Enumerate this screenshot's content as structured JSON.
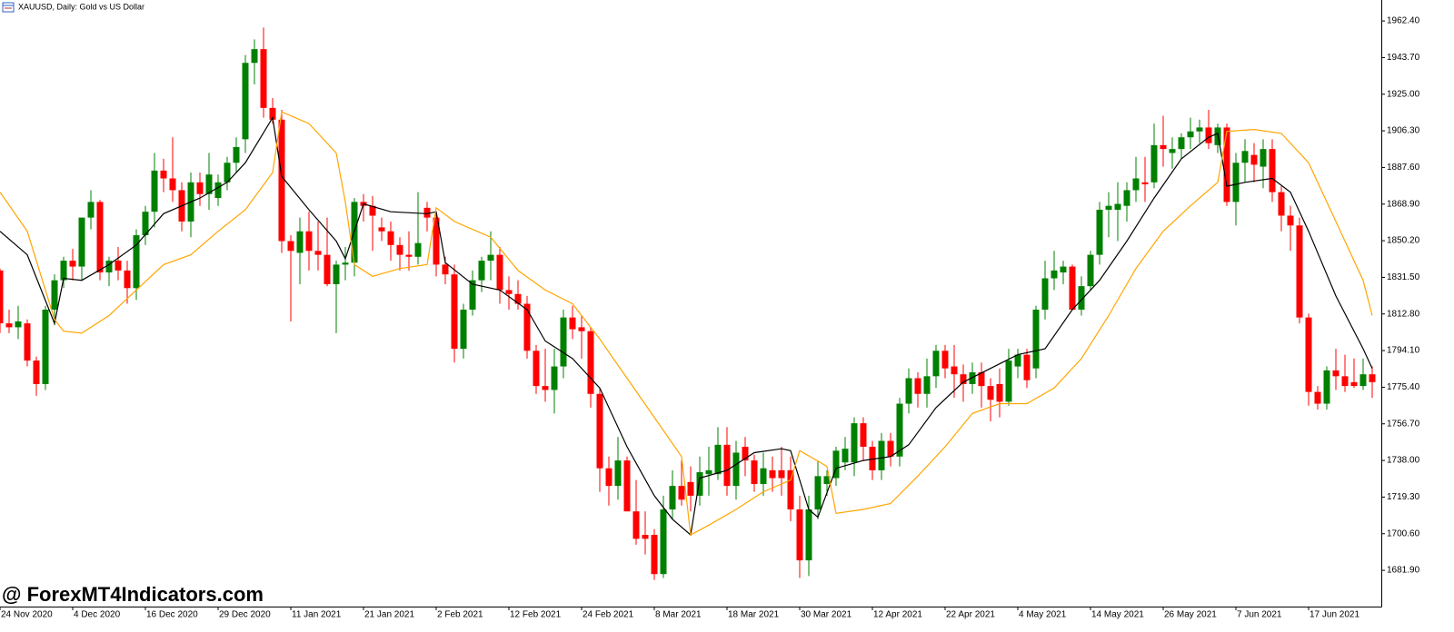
{
  "chart_data": {
    "type": "candlestick",
    "title": "XAUUSD, Daily:  Gold vs US Dollar",
    "watermark": "@ ForexMT4Indicators.com",
    "up_color": "#008000",
    "down_color": "#ff0000",
    "grid": false,
    "xlim": [
      0,
      152
    ],
    "ylim": [
      1663.4,
      1973.1
    ],
    "yticks": [
      {
        "value": 1962.4,
        "label": "1962.40"
      },
      {
        "value": 1943.7,
        "label": "1943.70"
      },
      {
        "value": 1925,
        "label": "1925.00"
      },
      {
        "value": 1906.3,
        "label": "1906.30"
      },
      {
        "value": 1887.6,
        "label": "1887.60"
      },
      {
        "value": 1868.9,
        "label": "1868.90"
      },
      {
        "value": 1850.2,
        "label": "1850.20"
      },
      {
        "value": 1831.5,
        "label": "1831.50"
      },
      {
        "value": 1812.8,
        "label": "1812.80"
      },
      {
        "value": 1794.1,
        "label": "1794.10"
      },
      {
        "value": 1775.4,
        "label": "1775.40"
      },
      {
        "value": 1756.7,
        "label": "1756.70"
      },
      {
        "value": 1738,
        "label": "1738.00"
      },
      {
        "value": 1719.3,
        "label": "1719.30"
      },
      {
        "value": 1700.6,
        "label": "1700.60"
      },
      {
        "value": 1681.9,
        "label": "1681.90"
      }
    ],
    "xticks": [
      {
        "value": 0,
        "label": "24 Nov 2020"
      },
      {
        "value": 8,
        "label": "4 Dec 2020"
      },
      {
        "value": 16,
        "label": "16 Dec 2020"
      },
      {
        "value": 24,
        "label": "29 Dec 2020"
      },
      {
        "value": 32,
        "label": "11 Jan 2021"
      },
      {
        "value": 40,
        "label": "21 Jan 2021"
      },
      {
        "value": 48,
        "label": "2 Feb 2021"
      },
      {
        "value": 56,
        "label": "12 Feb 2021"
      },
      {
        "value": 64,
        "label": "24 Feb 2021"
      },
      {
        "value": 72,
        "label": "8 Mar 2021"
      },
      {
        "value": 80,
        "label": "18 Mar 2021"
      },
      {
        "value": 88,
        "label": "30 Mar 2021"
      },
      {
        "value": 96,
        "label": "12 Apr 2021"
      },
      {
        "value": 104,
        "label": "22 Apr 2021"
      },
      {
        "value": 112,
        "label": "4 May 2021"
      },
      {
        "value": 120,
        "label": "14 May 2021"
      },
      {
        "value": 128,
        "label": "26 May 2021"
      },
      {
        "value": 136,
        "label": "7 Jun 2021"
      },
      {
        "value": 144,
        "label": "17 Jun 2021"
      }
    ],
    "open": [
      1835,
      1808,
      1806,
      1808,
      1789,
      1777,
      1815,
      1830,
      1840,
      1837,
      1862,
      1870,
      1834,
      1840,
      1835,
      1826,
      1853,
      1865,
      1886,
      1882,
      1876,
      1860,
      1880,
      1874,
      1872,
      1880,
      1890,
      1902,
      1941,
      1948,
      1918,
      1912,
      1850,
      1844,
      1855,
      1845,
      1843,
      1828,
      1838,
      1839,
      1870,
      1868,
      1857,
      1855,
      1848,
      1843,
      1842,
      1867,
      1862,
      1838,
      1833,
      1795,
      1815,
      1830,
      1840,
      1843,
      1825,
      1823,
      1818,
      1794,
      1776,
      1774,
      1786,
      1811,
      1806,
      1804,
      1772,
      1734,
      1725,
      1738,
      1712,
      1700,
      1700,
      1680,
      1713,
      1725,
      1727,
      1720,
      1731,
      1731,
      1746,
      1725,
      1745,
      1738,
      1726,
      1733,
      1733,
      1733,
      1713,
      1687,
      1713,
      1726,
      1729,
      1737,
      1737,
      1757,
      1745,
      1733,
      1748,
      1740,
      1767,
      1780,
      1772,
      1781,
      1794,
      1786,
      1782,
      1777,
      1783,
      1776,
      1777,
      1768,
      1786,
      1792,
      1785,
      1815,
      1831,
      1834,
      1837,
      1815,
      1827,
      1843,
      1866,
      1866,
      1868,
      1876,
      1880,
      1880,
      1899,
      1895,
      1897,
      1903,
      1906,
      1908,
      1899,
      1908,
      1870,
      1890,
      1894,
      1888,
      1897,
      1875,
      1863,
      1858,
      1811,
      1773,
      1767,
      1784,
      1781,
      1778,
      1776,
      1782
    ],
    "high": [
      1836,
      1815,
      1817,
      1810,
      1791,
      1817,
      1833,
      1842,
      1846,
      1862,
      1876,
      1871,
      1842,
      1847,
      1840,
      1856,
      1868,
      1895,
      1892,
      1903,
      1880,
      1885,
      1885,
      1895,
      1884,
      1893,
      1903,
      1945,
      1953,
      1959,
      1923,
      1917,
      1853,
      1862,
      1865,
      1860,
      1862,
      1840,
      1847,
      1872,
      1874,
      1873,
      1862,
      1860,
      1852,
      1855,
      1875,
      1870,
      1865,
      1842,
      1838,
      1818,
      1835,
      1842,
      1855,
      1847,
      1832,
      1830,
      1822,
      1797,
      1795,
      1795,
      1815,
      1817,
      1812,
      1806,
      1775,
      1740,
      1750,
      1740,
      1728,
      1712,
      1703,
      1720,
      1733,
      1738,
      1735,
      1740,
      1745,
      1755,
      1755,
      1748,
      1750,
      1741,
      1742,
      1740,
      1745,
      1740,
      1720,
      1720,
      1738,
      1733,
      1745,
      1750,
      1760,
      1760,
      1748,
      1752,
      1752,
      1770,
      1785,
      1783,
      1790,
      1797,
      1797,
      1797,
      1787,
      1788,
      1788,
      1780,
      1785,
      1795,
      1795,
      1795,
      1817,
      1840,
      1845,
      1840,
      1838,
      1832,
      1845,
      1870,
      1875,
      1880,
      1880,
      1893,
      1893,
      1910,
      1914,
      1903,
      1905,
      1913,
      1912,
      1917,
      1910,
      1910,
      1895,
      1902,
      1900,
      1902,
      1902,
      1878,
      1868,
      1862,
      1813,
      1776,
      1786,
      1795,
      1792,
      1790,
      1790,
      1786
    ],
    "low": [
      1803,
      1803,
      1800,
      1786,
      1771,
      1774,
      1807,
      1826,
      1830,
      1830,
      1856,
      1830,
      1827,
      1830,
      1818,
      1820,
      1848,
      1857,
      1875,
      1870,
      1855,
      1852,
      1868,
      1866,
      1868,
      1876,
      1885,
      1895,
      1930,
      1913,
      1910,
      1844,
      1809,
      1828,
      1835,
      1835,
      1827,
      1803,
      1830,
      1832,
      1860,
      1845,
      1850,
      1840,
      1835,
      1835,
      1838,
      1855,
      1832,
      1828,
      1788,
      1790,
      1812,
      1824,
      1830,
      1818,
      1815,
      1815,
      1790,
      1772,
      1768,
      1762,
      1780,
      1800,
      1790,
      1765,
      1722,
      1715,
      1718,
      1712,
      1695,
      1690,
      1677,
      1678,
      1708,
      1715,
      1712,
      1715,
      1720,
      1728,
      1720,
      1718,
      1730,
      1722,
      1720,
      1722,
      1720,
      1707,
      1678,
      1679,
      1708,
      1720,
      1725,
      1733,
      1730,
      1738,
      1728,
      1728,
      1735,
      1735,
      1762,
      1765,
      1765,
      1775,
      1780,
      1770,
      1768,
      1772,
      1765,
      1758,
      1760,
      1766,
      1780,
      1775,
      1780,
      1810,
      1825,
      1828,
      1815,
      1812,
      1825,
      1838,
      1852,
      1850,
      1860,
      1870,
      1870,
      1877,
      1888,
      1887,
      1892,
      1897,
      1900,
      1897,
      1895,
      1868,
      1858,
      1880,
      1880,
      1877,
      1870,
      1855,
      1845,
      1808,
      1766,
      1764,
      1764,
      1774,
      1773,
      1775,
      1774,
      1770
    ],
    "close": [
      1808,
      1806,
      1809,
      1789,
      1777,
      1815,
      1830,
      1840,
      1837,
      1862,
      1870,
      1834,
      1840,
      1835,
      1826,
      1853,
      1865,
      1886,
      1882,
      1876,
      1860,
      1880,
      1874,
      1884,
      1880,
      1890,
      1898,
      1941,
      1948,
      1918,
      1912,
      1850,
      1845,
      1855,
      1845,
      1843,
      1828,
      1838,
      1839,
      1870,
      1868,
      1863,
      1855,
      1848,
      1843,
      1842,
      1849,
      1862,
      1838,
      1833,
      1795,
      1815,
      1830,
      1840,
      1843,
      1825,
      1823,
      1818,
      1794,
      1776,
      1774,
      1786,
      1811,
      1805,
      1804,
      1772,
      1734,
      1725,
      1738,
      1712,
      1698,
      1698,
      1680,
      1713,
      1725,
      1718,
      1720,
      1732,
      1733,
      1746,
      1725,
      1742,
      1738,
      1726,
      1734,
      1729,
      1729,
      1713,
      1687,
      1713,
      1730,
      1730,
      1743,
      1744,
      1757,
      1745,
      1733,
      1748,
      1740,
      1767,
      1780,
      1772,
      1781,
      1794,
      1785,
      1782,
      1777,
      1783,
      1776,
      1769,
      1768,
      1789,
      1792,
      1779,
      1815,
      1831,
      1835,
      1837,
      1815,
      1827,
      1843,
      1866,
      1868,
      1869,
      1876,
      1882,
      1879,
      1899,
      1897,
      1897,
      1903,
      1906,
      1908,
      1900,
      1908,
      1870,
      1890,
      1896,
      1889,
      1897,
      1875,
      1863,
      1858,
      1811,
      1773,
      1767,
      1784,
      1781,
      1776,
      1776,
      1782,
      1778
    ],
    "lines": [
      {
        "color": "#000000",
        "x": [
          0,
          3,
          6,
          7,
          9,
          12,
          15,
          18,
          22,
          25,
          27,
          30,
          31,
          34,
          37,
          38,
          40,
          43,
          47,
          48,
          49,
          52,
          55,
          58,
          60,
          63,
          66,
          69,
          72,
          74,
          76,
          77,
          80,
          83,
          86,
          87,
          89,
          90,
          92,
          95,
          98,
          100,
          103,
          106,
          109,
          112,
          115,
          118,
          121,
          124,
          127,
          130,
          133,
          134,
          135,
          137,
          140,
          142,
          144,
          147,
          150,
          151
        ],
        "values": [
          1855,
          1843,
          1808,
          1831,
          1830,
          1838,
          1848,
          1864,
          1872,
          1880,
          1890,
          1913,
          1883,
          1866,
          1850,
          1841,
          1869,
          1865,
          1864,
          1865,
          1839,
          1828,
          1825,
          1815,
          1799,
          1790,
          1775,
          1745,
          1720,
          1708,
          1700,
          1729,
          1733,
          1742,
          1744,
          1743,
          1713,
          1709,
          1734,
          1738,
          1740,
          1746,
          1765,
          1778,
          1785,
          1792,
          1795,
          1815,
          1830,
          1850,
          1872,
          1892,
          1903,
          1905,
          1878,
          1880,
          1882,
          1875,
          1855,
          1822,
          1795,
          1785
        ]
      },
      {
        "color": "#ffa500",
        "x": [
          0,
          3,
          6,
          7,
          9,
          12,
          15,
          18,
          21,
          24,
          27,
          30,
          31,
          34,
          37,
          38,
          39,
          41,
          44,
          47,
          48,
          50,
          54,
          57,
          60,
          63,
          66,
          69,
          72,
          75,
          76,
          78,
          81,
          84,
          87,
          88,
          91,
          92,
          95,
          98,
          101,
          104,
          107,
          110,
          113,
          116,
          119,
          122,
          125,
          128,
          131,
          134,
          135,
          138,
          141,
          144,
          147,
          150,
          151
        ],
        "values": [
          1875,
          1855,
          1810,
          1804,
          1803,
          1812,
          1825,
          1838,
          1843,
          1855,
          1866,
          1885,
          1916,
          1910,
          1895,
          1870,
          1838,
          1832,
          1836,
          1838,
          1867,
          1860,
          1852,
          1835,
          1825,
          1818,
          1800,
          1780,
          1760,
          1740,
          1700,
          1705,
          1713,
          1722,
          1728,
          1743,
          1735,
          1711,
          1713,
          1716,
          1730,
          1745,
          1762,
          1767,
          1767,
          1775,
          1790,
          1812,
          1836,
          1855,
          1868,
          1880,
          1906,
          1907,
          1905,
          1890,
          1860,
          1830,
          1812
        ]
      }
    ]
  }
}
